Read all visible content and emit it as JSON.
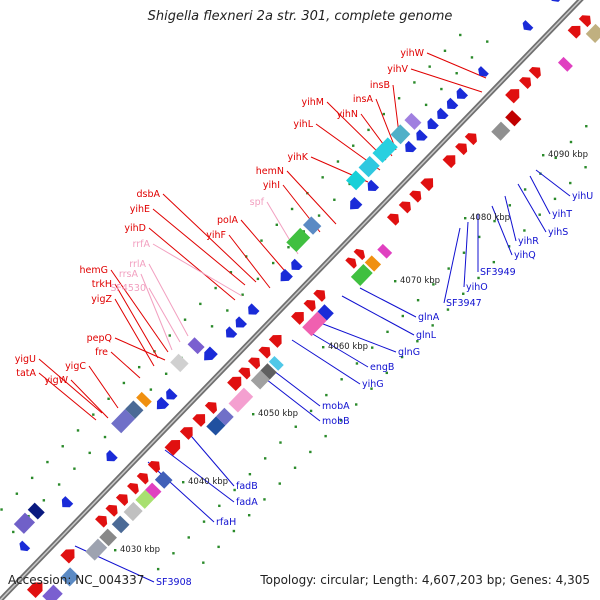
{
  "title": "Shigella flexneri 2a str. 301, complete genome",
  "accession_label": "Accession:",
  "accession": "NC_004337",
  "topology_label": "Topology:",
  "topology": "circular",
  "length_label": "Length:",
  "length": "4,607,203 bp",
  "genes_label": "Genes:",
  "genes_count": "4,305",
  "colors": {
    "forward_label": "#e00000",
    "pseudo_label": "#f2a0c0",
    "reverse_label": "#1010d0",
    "axis": "#888888"
  },
  "ticks": [
    {
      "label": "4030 kbp"
    },
    {
      "label": "4040 kbp"
    },
    {
      "label": "4050 kbp"
    },
    {
      "label": "4060 kbp"
    },
    {
      "label": "4070 kbp"
    },
    {
      "label": "4080 kbp"
    },
    {
      "label": "4090 kbp"
    }
  ],
  "forward_labels": [
    {
      "label": "yigU",
      "kind": "gene"
    },
    {
      "label": "tatA",
      "kind": "gene"
    },
    {
      "label": "yigW",
      "kind": "gene"
    },
    {
      "label": "yigC",
      "kind": "gene"
    },
    {
      "label": "fre",
      "kind": "gene"
    },
    {
      "label": "pepQ",
      "kind": "gene"
    },
    {
      "label": "yigZ",
      "kind": "gene"
    },
    {
      "label": "trkH",
      "kind": "gene"
    },
    {
      "label": "hemG",
      "kind": "gene"
    },
    {
      "label": "rrsA",
      "kind": "pseudo"
    },
    {
      "label": "SF4530",
      "kind": "pseudo"
    },
    {
      "label": "rrlA",
      "kind": "pseudo"
    },
    {
      "label": "yihD",
      "kind": "gene"
    },
    {
      "label": "rrfA",
      "kind": "pseudo"
    },
    {
      "label": "yihE",
      "kind": "gene"
    },
    {
      "label": "dsbA",
      "kind": "gene"
    },
    {
      "label": "yihF",
      "kind": "gene"
    },
    {
      "label": "polA",
      "kind": "gene"
    },
    {
      "label": "spf",
      "kind": "pseudo"
    },
    {
      "label": "yihI",
      "kind": "gene"
    },
    {
      "label": "hemN",
      "kind": "gene"
    },
    {
      "label": "yihK",
      "kind": "gene"
    },
    {
      "label": "yihL",
      "kind": "gene"
    },
    {
      "label": "yihM",
      "kind": "gene"
    },
    {
      "label": "yihN",
      "kind": "gene"
    },
    {
      "label": "insA",
      "kind": "gene"
    },
    {
      "label": "insB",
      "kind": "gene"
    },
    {
      "label": "yihV",
      "kind": "gene"
    },
    {
      "label": "yihW",
      "kind": "gene"
    }
  ],
  "reverse_labels": [
    {
      "label": "SF3908"
    },
    {
      "label": "rfaH"
    },
    {
      "label": "fadA"
    },
    {
      "label": "fadB"
    },
    {
      "label": "mobB"
    },
    {
      "label": "mobA"
    },
    {
      "label": "yihG"
    },
    {
      "label": "engB"
    },
    {
      "label": "glnG"
    },
    {
      "label": "glnL"
    },
    {
      "label": "glnA"
    },
    {
      "label": "SF3947"
    },
    {
      "label": "yihO"
    },
    {
      "label": "SF3949"
    },
    {
      "label": "yihQ"
    },
    {
      "label": "yihR"
    },
    {
      "label": "yihS"
    },
    {
      "label": "yihT"
    },
    {
      "label": "yihU"
    }
  ]
}
